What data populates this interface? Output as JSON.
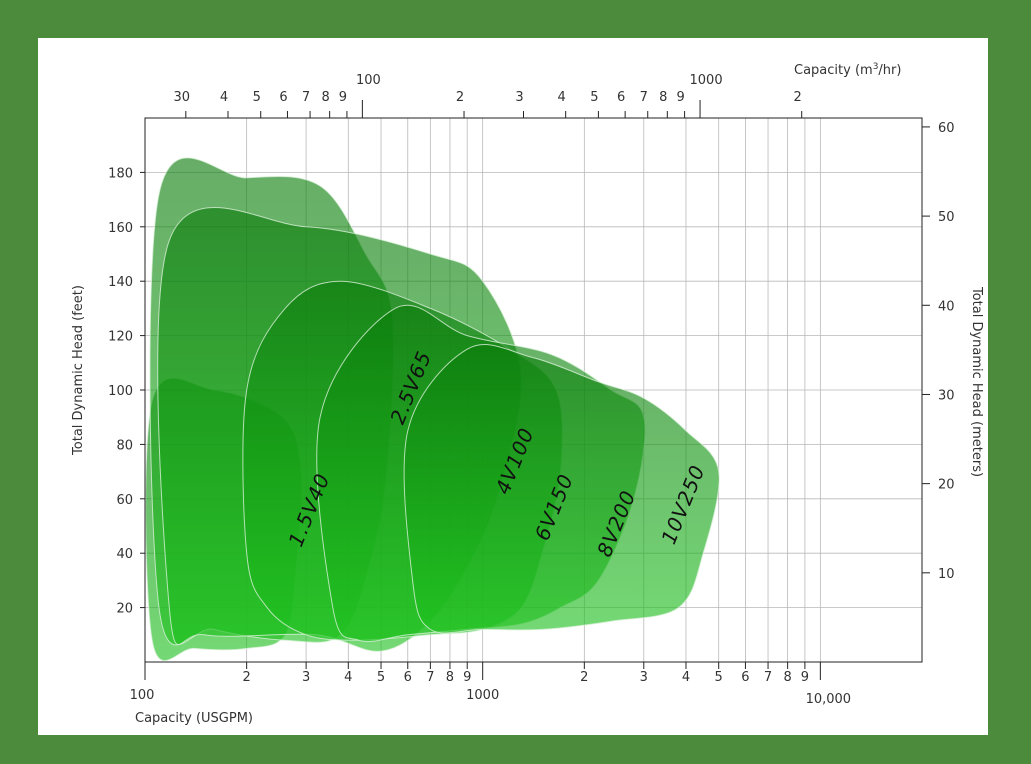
{
  "colors": {
    "frame": "#4b8b3b",
    "grid": "#b9b9b9",
    "axis": "#222222",
    "region_dark": "#0a7a0a",
    "region_light": "#1ec21e"
  },
  "chart_data": {
    "type": "area",
    "title": "",
    "xlabel": "Capacity (USGPM)",
    "ylabel": "Total Dynamic Head (feet)",
    "x2label": "Capacity (m³/hr)",
    "y2label": "Total Dynamic Head (meters)",
    "x_scale": "log",
    "xlim": [
      100,
      20000
    ],
    "ylim": [
      0,
      200
    ],
    "y2lim": [
      0,
      61
    ],
    "grid": true,
    "y_ticks": [
      20,
      40,
      60,
      80,
      100,
      120,
      140,
      160,
      180
    ],
    "y2_ticks": [
      10,
      20,
      30,
      40,
      50,
      60
    ],
    "x_tick_labels": [
      {
        "v": 100,
        "label": "100",
        "major": true
      },
      {
        "v": 200,
        "label": "2"
      },
      {
        "v": 300,
        "label": "3"
      },
      {
        "v": 400,
        "label": "4"
      },
      {
        "v": 500,
        "label": "5"
      },
      {
        "v": 600,
        "label": "6"
      },
      {
        "v": 700,
        "label": "7"
      },
      {
        "v": 800,
        "label": "8"
      },
      {
        "v": 900,
        "label": "9"
      },
      {
        "v": 1000,
        "label": "1000",
        "major": true
      },
      {
        "v": 2000,
        "label": "2"
      },
      {
        "v": 3000,
        "label": "3"
      },
      {
        "v": 4000,
        "label": "4"
      },
      {
        "v": 5000,
        "label": "5"
      },
      {
        "v": 6000,
        "label": "6"
      },
      {
        "v": 7000,
        "label": "7"
      },
      {
        "v": 8000,
        "label": "8"
      },
      {
        "v": 9000,
        "label": "9"
      },
      {
        "v": 10000,
        "label": "10,000",
        "major": true
      }
    ],
    "x2_tick_labels": [
      {
        "v": 30,
        "label": "30"
      },
      {
        "v": 40,
        "label": "4"
      },
      {
        "v": 50,
        "label": "5"
      },
      {
        "v": 60,
        "label": "6"
      },
      {
        "v": 70,
        "label": "7"
      },
      {
        "v": 80,
        "label": "8"
      },
      {
        "v": 90,
        "label": "9"
      },
      {
        "v": 100,
        "label": "100",
        "major": true
      },
      {
        "v": 200,
        "label": "2"
      },
      {
        "v": 300,
        "label": "3"
      },
      {
        "v": 400,
        "label": "4"
      },
      {
        "v": 500,
        "label": "5"
      },
      {
        "v": 600,
        "label": "6"
      },
      {
        "v": 700,
        "label": "7"
      },
      {
        "v": 800,
        "label": "8"
      },
      {
        "v": 900,
        "label": "9"
      },
      {
        "v": 1000,
        "label": "1000",
        "major": true
      },
      {
        "v": 2000,
        "label": "2"
      }
    ],
    "series": [
      {
        "name": "1.5V40",
        "outline": [
          [
            105,
            96
          ],
          [
            160,
            100
          ],
          [
            255,
            90
          ],
          [
            290,
            70
          ],
          [
            280,
            35
          ],
          [
            260,
            10
          ],
          [
            200,
            5
          ],
          [
            140,
            5
          ],
          [
            105,
            8
          ]
        ]
      },
      {
        "name": "2.5V65",
        "outline": [
          [
            110,
            172
          ],
          [
            200,
            178
          ],
          [
            330,
            175
          ],
          [
            450,
            150
          ],
          [
            540,
            127
          ],
          [
            520,
            70
          ],
          [
            460,
            35
          ],
          [
            380,
            10
          ],
          [
            260,
            8
          ],
          [
            160,
            12
          ],
          [
            110,
            20
          ]
        ]
      },
      {
        "name": "4V100",
        "outline": [
          [
            118,
            155
          ],
          [
            300,
            160
          ],
          [
            700,
            150
          ],
          [
            1000,
            140
          ],
          [
            1300,
            105
          ],
          [
            1100,
            60
          ],
          [
            900,
            35
          ],
          [
            700,
            15
          ],
          [
            500,
            4
          ],
          [
            320,
            10
          ],
          [
            150,
            10
          ],
          [
            118,
            20
          ]
        ]
      },
      {
        "name": "6V150",
        "outline": [
          [
            200,
            100
          ],
          [
            260,
            130
          ],
          [
            380,
            140
          ],
          [
            700,
            130
          ],
          [
            1200,
            115
          ],
          [
            1650,
            100
          ],
          [
            1700,
            70
          ],
          [
            1500,
            40
          ],
          [
            1300,
            20
          ],
          [
            1000,
            12
          ],
          [
            700,
            10
          ],
          [
            430,
            8
          ],
          [
            300,
            10
          ],
          [
            230,
            20
          ],
          [
            200,
            40
          ]
        ]
      },
      {
        "name": "8V200",
        "outline": [
          [
            330,
            90
          ],
          [
            550,
            130
          ],
          [
            900,
            120
          ],
          [
            1600,
            113
          ],
          [
            2400,
            100
          ],
          [
            3000,
            90
          ],
          [
            2800,
            60
          ],
          [
            2200,
            30
          ],
          [
            1700,
            20
          ],
          [
            1300,
            14
          ],
          [
            900,
            12
          ],
          [
            600,
            10
          ],
          [
            430,
            8
          ],
          [
            360,
            20
          ]
        ]
      },
      {
        "name": "10V250",
        "outline": [
          [
            600,
            85
          ],
          [
            900,
            115
          ],
          [
            1400,
            112
          ],
          [
            2200,
            103
          ],
          [
            3000,
            97
          ],
          [
            4000,
            85
          ],
          [
            5000,
            70
          ],
          [
            4500,
            40
          ],
          [
            3800,
            20
          ],
          [
            2400,
            15
          ],
          [
            1500,
            12
          ],
          [
            1000,
            12
          ],
          [
            700,
            12
          ],
          [
            620,
            30
          ]
        ]
      }
    ]
  }
}
